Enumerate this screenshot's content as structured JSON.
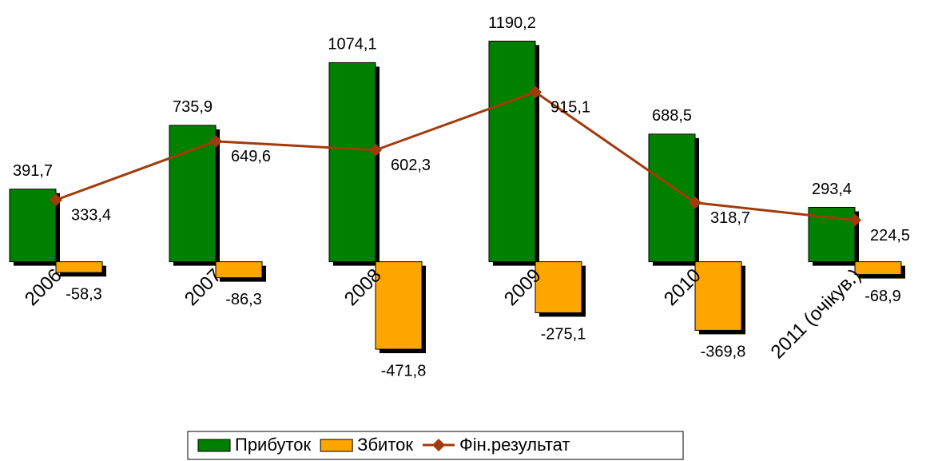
{
  "chart_data": {
    "type": "bar",
    "categories": [
      "2006",
      "2007",
      "2008",
      "2009",
      "2010",
      "2011 (очікув.)"
    ],
    "series": [
      {
        "name": "Прибуток",
        "color": "#008000",
        "values": [
          391.7,
          735.9,
          1074.1,
          1190.2,
          688.5,
          293.4
        ],
        "value_labels": [
          "391,7",
          "735,9",
          "1074,1",
          "1190,2",
          "688,5",
          "293,4"
        ]
      },
      {
        "name": "Збиток",
        "color": "#ffa500",
        "values": [
          -58.3,
          -86.3,
          -471.8,
          -275.1,
          -369.8,
          -68.9
        ],
        "value_labels": [
          "-58,3",
          "-86,3",
          "-471,8",
          "-275,1",
          "-369,8",
          "-68,9"
        ]
      },
      {
        "name": "Фін.результат",
        "type": "line",
        "color": "#a33a0c",
        "values": [
          333.4,
          649.6,
          602.3,
          915.1,
          318.7,
          224.5
        ],
        "value_labels": [
          "333,4",
          "649,6",
          "602,3",
          "915,1",
          "318,7",
          "224,5"
        ]
      }
    ],
    "ylim": [
      -700,
      1300
    ]
  }
}
